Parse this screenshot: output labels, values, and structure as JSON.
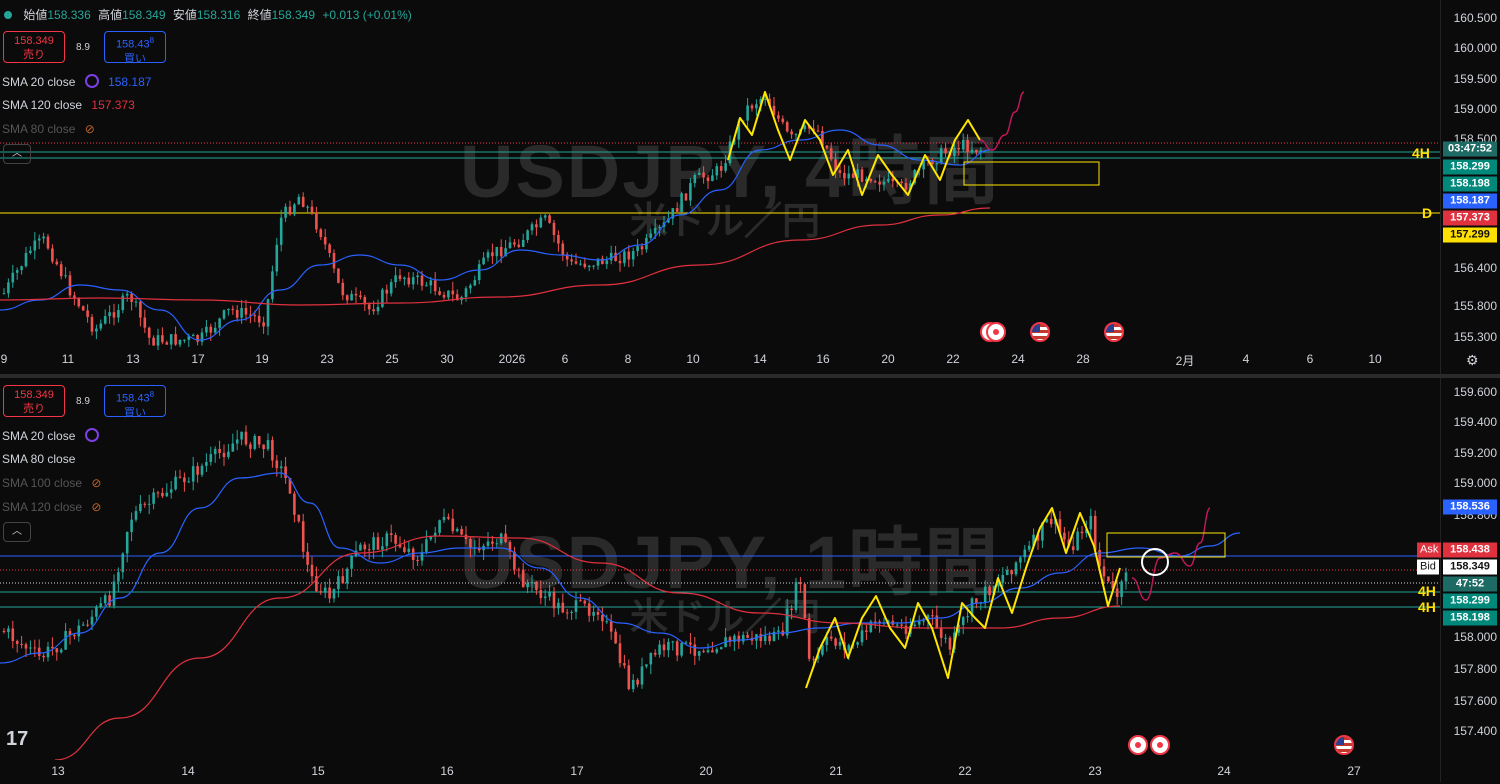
{
  "header": {
    "ohlc": [
      {
        "key": "始値",
        "value": "158.336"
      },
      {
        "key": "高値",
        "value": "158.349"
      },
      {
        "key": "安値",
        "value": "158.316"
      },
      {
        "key": "終値",
        "value": "158.349"
      }
    ],
    "change": "+0.013 (+0.01%)"
  },
  "colors": {
    "bull": "#26a69a",
    "bear": "#ef5350",
    "sma_blue": "#2962ff",
    "sma_red": "#e0313f",
    "annotation": "#ffe600",
    "projection": "#c2185b"
  },
  "top": {
    "watermark_main": "USDJPY, 4時間",
    "watermark_sub": "米ドル／円",
    "sell": {
      "price": "158.349",
      "label": "売り"
    },
    "buy": {
      "price": "158.43",
      "sup": "8",
      "label": "買い"
    },
    "spread": "8.9",
    "indicators": [
      {
        "name": "SMA 20 close",
        "value": "158.187",
        "color": "#2962ff",
        "icon": "sync-icon"
      },
      {
        "name": "SMA 120 close",
        "value": "157.373",
        "color": "#e0313f",
        "icon": ""
      },
      {
        "name": "SMA 80 close",
        "value": "",
        "color": "#555",
        "icon": "eye-off-icon"
      }
    ],
    "collapse_glyph": "︿",
    "tf_labels": [
      "4H",
      "D"
    ],
    "price_labels": [
      "160.500",
      "160.000",
      "159.500",
      "159.000",
      "158.500",
      "156.400",
      "155.800",
      "155.300"
    ],
    "price_tags": [
      {
        "text": "03:47:52",
        "bg": "#1e6b65"
      },
      {
        "text": "158.299",
        "bg": "#00897b"
      },
      {
        "text": "158.198",
        "bg": "#00897b"
      },
      {
        "text": "158.187",
        "bg": "#2962ff"
      },
      {
        "text": "157.373",
        "bg": "#e0313f"
      },
      {
        "text": "157.299",
        "bg": "#ffe000"
      }
    ],
    "time_labels": [
      "9",
      "11",
      "13",
      "17",
      "19",
      "23",
      "25",
      "30",
      "2026",
      "6",
      "8",
      "10",
      "14",
      "16",
      "20",
      "22",
      "24",
      "28",
      "2月",
      "4",
      "6",
      "10"
    ]
  },
  "bottom": {
    "watermark_main": "USDJPY, 1時間",
    "watermark_sub": "米ドル／円",
    "sell": {
      "price": "158.349",
      "label": "売り"
    },
    "buy": {
      "price": "158.43",
      "sup": "8",
      "label": "買い"
    },
    "spread": "8.9",
    "indicators": [
      {
        "name": "SMA 20 close",
        "value": "",
        "color": "#2962ff",
        "icon": "sync-icon"
      },
      {
        "name": "SMA 80 close",
        "value": "",
        "color": "#e0313f",
        "icon": ""
      },
      {
        "name": "SMA 100 close",
        "value": "",
        "color": "#555",
        "icon": "eye-off-icon"
      },
      {
        "name": "SMA 120 close",
        "value": "",
        "color": "#555",
        "icon": "eye-off-icon"
      }
    ],
    "collapse_glyph": "︿",
    "tf_labels": [
      "4H",
      "4H"
    ],
    "price_labels": [
      "159.600",
      "159.400",
      "159.200",
      "159.000",
      "158.800",
      "158.000",
      "157.800",
      "157.600",
      "157.400"
    ],
    "price_tags": [
      {
        "text": "158.536",
        "bg": "#2962ff",
        "label": ""
      },
      {
        "text": "158.438",
        "bg": "#e0313f",
        "label": "Ask"
      },
      {
        "text": "158.349",
        "bg": "#ffffff",
        "label": "Bid"
      },
      {
        "text": "47:52",
        "bg": "#1e6b65",
        "label": ""
      },
      {
        "text": "158.299",
        "bg": "#00897b",
        "label": ""
      },
      {
        "text": "158.198",
        "bg": "#00897b",
        "label": ""
      }
    ],
    "time_labels": [
      "13",
      "14",
      "15",
      "16",
      "17",
      "20",
      "21",
      "22",
      "23",
      "24",
      "27"
    ]
  },
  "logo": "17"
}
